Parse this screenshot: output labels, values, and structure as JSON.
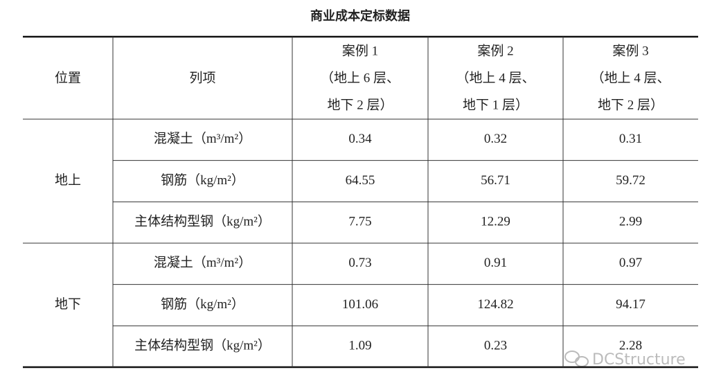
{
  "title": "商业成本定标数据",
  "table": {
    "header": [
      "位置",
      "列项",
      [
        "案例 1",
        "（地上 6 层、",
        "地下 2 层）"
      ],
      [
        "案例 2",
        "（地上 4 层、",
        "地下 1 层）"
      ],
      [
        "案例 3",
        "（地上 4 层、",
        "地下 2 层）"
      ]
    ],
    "groups": [
      {
        "label": "地上",
        "rows": [
          {
            "item": "混凝土（m³/m²）",
            "values": [
              0.34,
              0.32,
              0.31
            ]
          },
          {
            "item": "钢筋（kg/m²）",
            "values": [
              64.55,
              56.71,
              59.72
            ]
          },
          {
            "item": "主体结构型钢（kg/m²）",
            "values": [
              7.75,
              12.29,
              2.99
            ]
          }
        ]
      },
      {
        "label": "地下",
        "rows": [
          {
            "item": "混凝土（m³/m²）",
            "values": [
              0.73,
              0.91,
              0.97
            ]
          },
          {
            "item": "钢筋（kg/m²）",
            "values": [
              101.06,
              124.82,
              94.17
            ]
          },
          {
            "item": "主体结构型钢（kg/m²）",
            "values": [
              1.09,
              0.23,
              2.28
            ]
          }
        ]
      }
    ]
  },
  "watermark": "DCStructure"
}
